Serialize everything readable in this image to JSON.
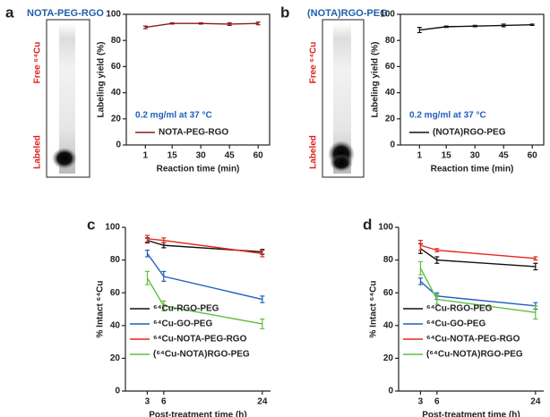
{
  "chart_data": [
    {
      "type": "line",
      "panel_label": "a",
      "title": "NOTA-PEG-RGO",
      "gel": {
        "top": "Free ⁶⁴Cu",
        "bottom": "Labeled"
      },
      "annotation": "0.2 mg/ml at 37 °C",
      "x_label": "Reaction time (min)",
      "y_label": "Labeling yield (%)",
      "x": [
        1,
        15,
        30,
        45,
        60
      ],
      "xlim": [
        -9,
        66
      ],
      "xticks": [
        1,
        15,
        30,
        45,
        60
      ],
      "ylim": [
        0,
        100
      ],
      "yticks": [
        0,
        20,
        40,
        60,
        80,
        100
      ],
      "frame": true,
      "series": [
        {
          "name": "NOTA-PEG-RGO",
          "color": "#8b1a1a",
          "values": [
            90,
            93,
            93,
            92.5,
            93
          ],
          "errors": [
            1,
            0.5,
            0.5,
            1,
            1
          ]
        }
      ]
    },
    {
      "type": "line",
      "panel_label": "b",
      "title": "(NOTA)RGO-PEG",
      "gel": {
        "top": "Free ⁶⁴Cu",
        "bottom": "Labeled"
      },
      "annotation": "0.2 mg/ml at 37 °C",
      "x_label": "Reaction time (min)",
      "y_label": "Labeling yield (%)",
      "x": [
        1,
        15,
        30,
        45,
        60
      ],
      "xlim": [
        -9,
        66
      ],
      "xticks": [
        1,
        15,
        30,
        45,
        60
      ],
      "ylim": [
        0,
        100
      ],
      "yticks": [
        0,
        20,
        40,
        60,
        80,
        100
      ],
      "frame": true,
      "series": [
        {
          "name": "(NOTA)RGO-PEG",
          "color": "#111111",
          "values": [
            88,
            90.5,
            91,
            91.5,
            92
          ],
          "errors": [
            2,
            0.5,
            0.5,
            1,
            0.5
          ]
        }
      ]
    },
    {
      "type": "line",
      "panel_label": "c",
      "x_label": "Post-treatment time (h)",
      "y_label": "% Intact ⁶⁴Cu",
      "x": [
        3,
        6,
        24
      ],
      "xlim": [
        -1,
        25.5
      ],
      "xticks": [
        3,
        6,
        24
      ],
      "ylim": [
        0,
        100
      ],
      "yticks": [
        0,
        20,
        40,
        60,
        80,
        100
      ],
      "frame": false,
      "series": [
        {
          "name": "⁶⁴Cu-RGO-PEG",
          "color": "#111111",
          "values": [
            92,
            89,
            85
          ],
          "errors": [
            1.5,
            1.5,
            1.5
          ]
        },
        {
          "name": "⁶⁴Cu-GO-PEG",
          "color": "#1f5fbf",
          "values": [
            84,
            70,
            56
          ],
          "errors": [
            2,
            3,
            2
          ]
        },
        {
          "name": "⁶⁴Cu-NOTA-PEG-RGO",
          "color": "#e8251f",
          "values": [
            93,
            92,
            84
          ],
          "errors": [
            2,
            1.5,
            2
          ]
        },
        {
          "name": "(⁶⁴Cu-NOTA)RGO-PEG",
          "color": "#5fbf3f",
          "values": [
            69,
            52,
            41
          ],
          "errors": [
            4,
            3,
            3
          ]
        }
      ]
    },
    {
      "type": "line",
      "panel_label": "d",
      "x_label": "Post-treatment time (h)",
      "y_label": "% Intact ⁶⁴Cu",
      "x": [
        3,
        6,
        24
      ],
      "xlim": [
        -1,
        25.5
      ],
      "xticks": [
        3,
        6,
        24
      ],
      "ylim": [
        0,
        100
      ],
      "yticks": [
        0,
        20,
        40,
        60,
        80,
        100
      ],
      "frame": false,
      "series": [
        {
          "name": "⁶⁴Cu-RGO-PEG",
          "color": "#111111",
          "values": [
            87,
            80,
            76
          ],
          "errors": [
            3,
            2,
            2
          ]
        },
        {
          "name": "⁶⁴Cu-GO-PEG",
          "color": "#1f5fbf",
          "values": [
            67,
            58,
            52
          ],
          "errors": [
            2,
            2,
            2
          ]
        },
        {
          "name": "⁶⁴Cu-NOTA-PEG-RGO",
          "color": "#e8251f",
          "values": [
            89,
            86,
            81
          ],
          "errors": [
            3,
            1,
            1
          ]
        },
        {
          "name": "(⁶⁴Cu-NOTA)RGO-PEG",
          "color": "#5fbf3f",
          "values": [
            75,
            56,
            48
          ],
          "errors": [
            4,
            3,
            4
          ]
        }
      ]
    }
  ]
}
